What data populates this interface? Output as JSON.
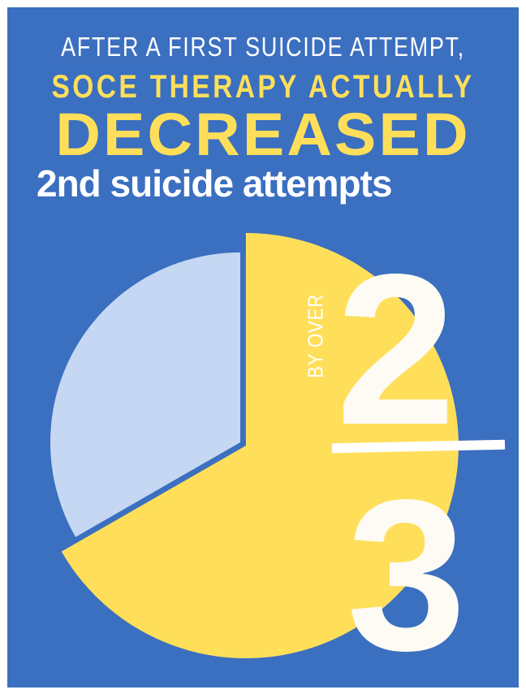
{
  "headline": {
    "line1": "AFTER A FIRST SUICIDE ATTEMPT,",
    "line2": "SOCE THERAPY ACTUALLY",
    "line3": "DECREASED",
    "line4": "2nd suicide attempts"
  },
  "stat": {
    "prefix": "BY OVER",
    "numerator": "2",
    "denominator": "3"
  },
  "colors": {
    "background": "#3b6fc0",
    "highlight_slice": "#ffdf5a",
    "remaining_slice": "#c5d7f2",
    "text": "#ffffff"
  },
  "chart_data": {
    "type": "pie",
    "values": [
      0.667,
      0.333
    ],
    "exploded_index": 0
  }
}
